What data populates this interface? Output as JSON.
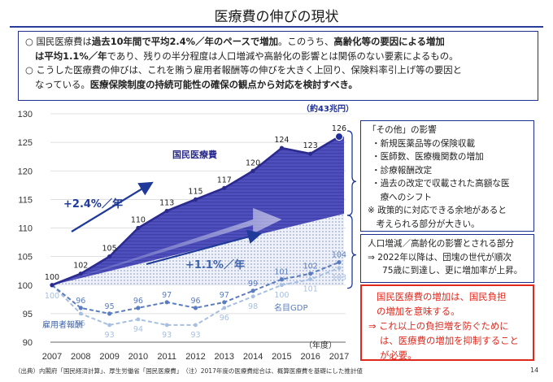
{
  "title": "医療費の伸びの現状",
  "summary": {
    "line1_a": "○  国民医療費は",
    "line1_b": "過去10年間で平均2.4%／年のペースで増加",
    "line1_c": "。このうち、",
    "line1_d": "高齢化等の要因による増加",
    "line2_a": "は平均1.1%／年",
    "line2_b": "であり、残りの半分程度は人口増減や高齢化の影響とは関係のない要素によるもの。",
    "line3": "○  こうした医療費の伸びは、これを賄う雇用者報酬等の伸びを大きく上回り、保険料率引上げ等の要因と",
    "line4_a": "なっている。",
    "line4_b": "医療保険制度の持続可能性の確保の観点から対応を検討すべき。"
  },
  "chart_data": {
    "type": "line",
    "x": [
      "2007",
      "2008",
      "2009",
      "2010",
      "2011",
      "2012",
      "2013",
      "2014",
      "2015",
      "2016",
      "2017"
    ],
    "xlabel": "（年度）",
    "ylim": [
      90,
      130
    ],
    "yticks": [
      "90",
      "95",
      "100",
      "105",
      "110",
      "115",
      "120",
      "125",
      "130"
    ],
    "series": [
      {
        "name": "国民医療費",
        "values": [
          100,
          102,
          105,
          110,
          113,
          115,
          117,
          120,
          124,
          123,
          126
        ],
        "color": "#3333aa"
      },
      {
        "name": "名目GDP",
        "values": [
          100,
          96,
          95,
          96,
          97,
          96,
          97,
          99,
          101,
          102,
          104
        ],
        "color": "#5b7dc0"
      },
      {
        "name": "雇用者報酬",
        "values": [
          100,
          95,
          93,
          94,
          93,
          93,
          96,
          98,
          100,
          101,
          103
        ],
        "color": "#a7bfe0"
      }
    ],
    "trend_labels": {
      "total": "+2.4%／年",
      "aging": "+1.1%／年"
    },
    "last_note": "（約43兆円）"
  },
  "box_other": {
    "title": "「その他」の影響",
    "items": [
      "・新規医薬品等の保険収載",
      "・医師数、医療機関数の増加",
      "・診療報酬改定",
      "・過去の改定で収載された高額な医",
      "　療へのシフト"
    ],
    "note1": "※ 政策的に対応できる余地があると",
    "note2": "　考えられる部分が大きい。"
  },
  "box_aging": {
    "line1": "人口増減／高齢化の影響とされる部分",
    "line2": "⇒  2022年以降は、団塊の世代が順次",
    "line3": "75歳に到達し、更に増加率が上昇。"
  },
  "box_burden": {
    "line1": "国民医療費の増加は、国民負担",
    "line2": "の増加を意味する。",
    "line3": "⇒  これ以上の負担増を防ぐために",
    "line4": "は、医療費の増加を抑制すること",
    "line5": "が必要。"
  },
  "footnote": "（出典）内閣府「国民経済計算」、厚生労働省「国民医療費」　（注）2017年度の医療費総合は、概算医療費を基礎にした推計値",
  "page_number": "14"
}
